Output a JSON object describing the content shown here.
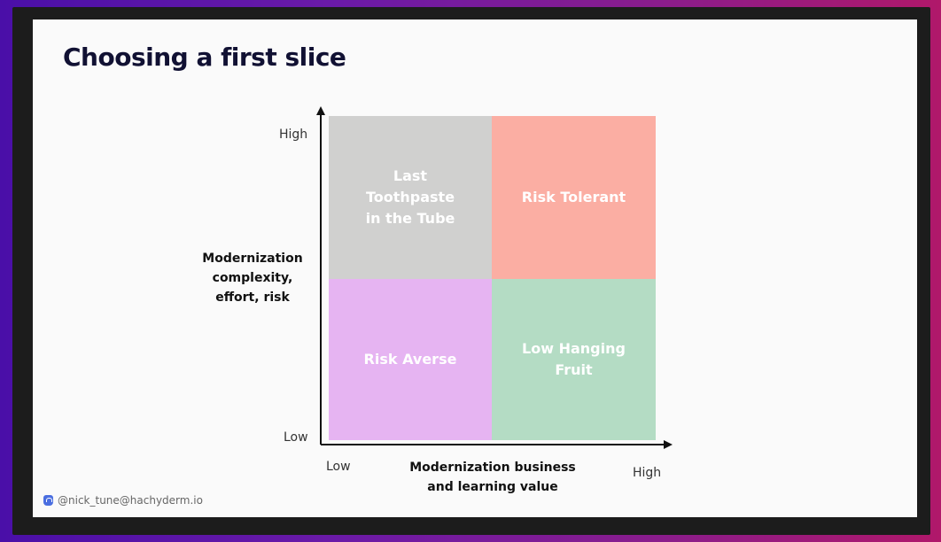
{
  "slide": {
    "title": "Choosing a first slice"
  },
  "quadrants": {
    "top_left": "Last Toothpaste\nin the Tube",
    "top_right": "Risk Tolerant",
    "bottom_left": "Risk Averse",
    "bottom_right": "Low Hanging\nFruit"
  },
  "y_axis": {
    "title": "Modernization\ncomplexity,\neffort, risk",
    "high_label": "High",
    "low_label": "Low"
  },
  "x_axis": {
    "title": "Modernization business\nand learning value",
    "low_label": "Low",
    "high_label": "High"
  },
  "footer": {
    "handle": "@nick_tune@hachyderm.io",
    "icon": "mastodon-icon"
  },
  "colors": {
    "top_left": "#d0d0cf",
    "top_right": "#fbaea3",
    "bottom_left": "#e6b4f2",
    "bottom_right": "#b4dcc4",
    "quadrant_text": "#ffffff",
    "title": "#111133"
  }
}
